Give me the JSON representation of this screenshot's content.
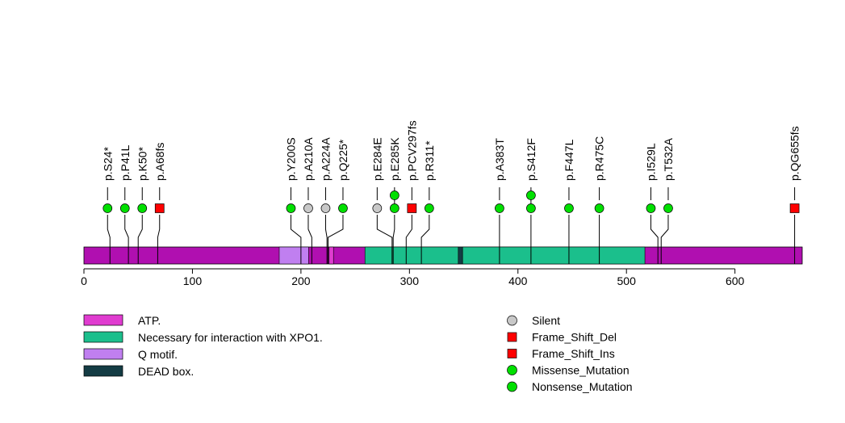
{
  "chart_data": {
    "type": "lollipop",
    "protein_length": 662,
    "xlim": [
      0,
      662
    ],
    "xticks": [
      0,
      100,
      200,
      300,
      400,
      500,
      600
    ],
    "colors": {
      "backbone": "#b00fb0",
      "silent": "#c8c8c8",
      "frameshift": "#ff0000",
      "missense": "#00e000"
    },
    "domains": [
      {
        "name": "Q motif.",
        "start": 180,
        "end": 207,
        "color": "#c07ff0"
      },
      {
        "name": "ATP.",
        "start": 226,
        "end": 230,
        "color": "#e03cd0"
      },
      {
        "name": "Necessary for interaction with XPO1.",
        "start": 259,
        "end": 345,
        "color": "#1bbf8c"
      },
      {
        "name": "DEAD box.",
        "start": 345,
        "end": 349,
        "color": "#143c44"
      },
      {
        "name": "Necessary for interaction with XPO1.",
        "start": 349,
        "end": 517,
        "color": "#1bbf8c"
      }
    ],
    "mutations": [
      {
        "label": "p.S24*",
        "pos": 24,
        "type": "Nonsense_Mutation",
        "count": 1
      },
      {
        "label": "p.P41L",
        "pos": 41,
        "type": "Missense_Mutation",
        "count": 1
      },
      {
        "label": "p.K50*",
        "pos": 50,
        "type": "Nonsense_Mutation",
        "count": 1
      },
      {
        "label": "p.A68fs",
        "pos": 68,
        "type": "Frame_Shift_Del",
        "count": 1
      },
      {
        "label": "p.Y200S",
        "pos": 200,
        "type": "Missense_Mutation",
        "count": 1
      },
      {
        "label": "p.A210A",
        "pos": 210,
        "type": "Silent",
        "count": 1
      },
      {
        "label": "p.A224A",
        "pos": 224,
        "type": "Silent",
        "count": 1
      },
      {
        "label": "p.Q225*",
        "pos": 225,
        "type": "Nonsense_Mutation",
        "count": 1
      },
      {
        "label": "p.E284E",
        "pos": 284,
        "type": "Silent",
        "count": 1
      },
      {
        "label": "p.E285K",
        "pos": 285,
        "type": "Missense_Mutation",
        "count": 2
      },
      {
        "label": "p.PCV297fs",
        "pos": 297,
        "type": "Frame_Shift_Del",
        "count": 1
      },
      {
        "label": "p.R311*",
        "pos": 311,
        "type": "Nonsense_Mutation",
        "count": 1
      },
      {
        "label": "p.A383T",
        "pos": 383,
        "type": "Missense_Mutation",
        "count": 1
      },
      {
        "label": "p.S412F",
        "pos": 412,
        "type": "Missense_Mutation",
        "count": 2
      },
      {
        "label": "p.F447L",
        "pos": 447,
        "type": "Missense_Mutation",
        "count": 1
      },
      {
        "label": "p.R475C",
        "pos": 475,
        "type": "Missense_Mutation",
        "count": 1
      },
      {
        "label": "p.I529L",
        "pos": 529,
        "type": "Missense_Mutation",
        "count": 1
      },
      {
        "label": "p.T532A",
        "pos": 532,
        "type": "Missense_Mutation",
        "count": 1
      },
      {
        "label": "p.QG655fs",
        "pos": 655,
        "type": "Frame_Shift_Del",
        "count": 1
      }
    ],
    "domain_legend": [
      {
        "label": "ATP.",
        "color": "#e03cd0"
      },
      {
        "label": "Necessary for interaction with XPO1.",
        "color": "#1bbf8c"
      },
      {
        "label": "Q motif.",
        "color": "#c07ff0"
      },
      {
        "label": "DEAD box.",
        "color": "#143c44"
      }
    ],
    "mutation_legend": [
      {
        "label": "Silent",
        "shape": "circle",
        "color": "#c8c8c8"
      },
      {
        "label": "Frame_Shift_Del",
        "shape": "square",
        "color": "#ff0000"
      },
      {
        "label": "Frame_Shift_Ins",
        "shape": "square",
        "color": "#ff0000"
      },
      {
        "label": "Missense_Mutation",
        "shape": "circle",
        "color": "#00e000"
      },
      {
        "label": "Nonsense_Mutation",
        "shape": "circle",
        "color": "#00e000"
      }
    ]
  }
}
